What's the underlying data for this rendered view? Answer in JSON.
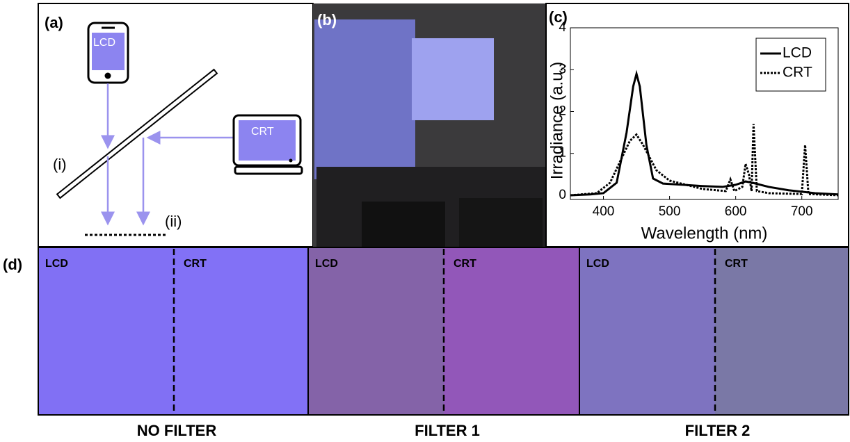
{
  "panel_a": {
    "label": "(a)",
    "phone": "LCD",
    "monitor": "CRT",
    "splitter": "(i)",
    "screen": "(ii)"
  },
  "panel_b": {
    "label": "(b)"
  },
  "panel_c": {
    "label": "(c)"
  },
  "chart_data": {
    "type": "line",
    "ylabel": "Irradiance (a.u.)",
    "xlabel": "Wavelength (nm)",
    "xlim": [
      350,
      755
    ],
    "ylim": [
      -0.1,
      4
    ],
    "xticks": [
      400,
      500,
      600,
      700
    ],
    "yticks": [
      0,
      1,
      2,
      3,
      4
    ],
    "legend": "upper right",
    "series": [
      {
        "name": "LCD",
        "color": "#000000",
        "style": "solid",
        "x": [
          350,
          380,
          400,
          420,
          435,
          445,
          450,
          455,
          465,
          475,
          490,
          520,
          550,
          580,
          600,
          615,
          625,
          650,
          680,
          720,
          755
        ],
        "values": [
          0,
          0.02,
          0.05,
          0.3,
          1.5,
          2.6,
          2.9,
          2.6,
          1.2,
          0.4,
          0.28,
          0.25,
          0.22,
          0.2,
          0.25,
          0.33,
          0.3,
          0.2,
          0.12,
          0.05,
          0.02
        ]
      },
      {
        "name": "CRT",
        "color": "#000000",
        "style": "dotted",
        "x": [
          350,
          390,
          410,
          425,
          440,
          450,
          460,
          480,
          500,
          550,
          585,
          592,
          598,
          610,
          615,
          620,
          624,
          627,
          632,
          650,
          700,
          705,
          710,
          755
        ],
        "values": [
          0,
          0.05,
          0.3,
          0.8,
          1.3,
          1.45,
          1.2,
          0.6,
          0.35,
          0.15,
          0.1,
          0.38,
          0.1,
          0.2,
          0.75,
          0.5,
          0.1,
          1.7,
          0.1,
          0.05,
          0.03,
          1.2,
          0.03,
          0
        ]
      }
    ]
  },
  "panel_d": {
    "label": "(d)",
    "columns": [
      {
        "left": "LCD",
        "right": "CRT",
        "caption": "NO FILTER"
      },
      {
        "left": "LCD",
        "right": "CRT",
        "caption": "FILTER 1"
      },
      {
        "left": "LCD",
        "right": "CRT",
        "caption": "FILTER 2"
      }
    ]
  }
}
